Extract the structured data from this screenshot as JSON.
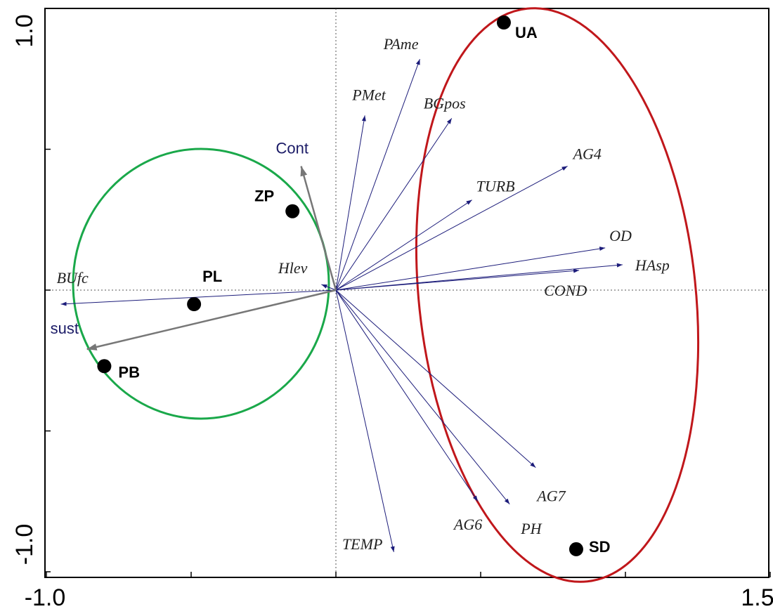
{
  "chart_data": {
    "type": "scatter",
    "subtype": "ordination-biplot",
    "xlim": [
      -1.0,
      1.5
    ],
    "ylim": [
      -1.0,
      1.0
    ],
    "x_tick_labels": {
      "min": "-1.0",
      "max": "1.5"
    },
    "y_tick_labels": {
      "min": "-1.0",
      "max": "1.0"
    },
    "x_ticks": [
      -1.0,
      -0.5,
      0.0,
      0.5,
      1.0,
      1.5
    ],
    "y_ticks": [
      -1.0,
      -0.5,
      0.0,
      0.5,
      1.0
    ],
    "zero_lines": "dotted",
    "grid": false,
    "sites": [
      {
        "label": "UA",
        "x": 0.58,
        "y": 0.95
      },
      {
        "label": "ZP",
        "x": -0.15,
        "y": 0.28
      },
      {
        "label": "PL",
        "x": -0.49,
        "y": -0.05
      },
      {
        "label": "PB",
        "x": -0.8,
        "y": -0.27
      },
      {
        "label": "SD",
        "x": 0.83,
        "y": -0.92
      }
    ],
    "environmental_vectors": [
      {
        "label": "PAme",
        "x": 0.29,
        "y": 0.82
      },
      {
        "label": "PMet",
        "x": 0.1,
        "y": 0.62
      },
      {
        "label": "BGpos",
        "x": 0.4,
        "y": 0.61
      },
      {
        "label": "AG4",
        "x": 0.8,
        "y": 0.44
      },
      {
        "label": "TURB",
        "x": 0.47,
        "y": 0.32
      },
      {
        "label": "OD",
        "x": 0.93,
        "y": 0.15
      },
      {
        "label": "HAsp",
        "x": 0.99,
        "y": 0.09
      },
      {
        "label": "COND",
        "x": 0.84,
        "y": 0.07
      },
      {
        "label": "Hlev",
        "x": -0.05,
        "y": 0.02
      },
      {
        "label": "BUfc",
        "x": -0.95,
        "y": -0.05
      },
      {
        "label": "AG7",
        "x": 0.69,
        "y": -0.63
      },
      {
        "label": "AG6",
        "x": 0.49,
        "y": -0.75
      },
      {
        "label": "PH",
        "x": 0.6,
        "y": -0.76
      },
      {
        "label": "TEMP",
        "x": 0.2,
        "y": -0.93
      }
    ],
    "supplementary_vectors": [
      {
        "label": "Cont",
        "x": -0.12,
        "y": 0.44
      },
      {
        "label": "sust",
        "x": -0.86,
        "y": -0.21
      }
    ],
    "groups": [
      {
        "color": "#1aa84a",
        "members": [
          "ZP",
          "PL",
          "PB"
        ]
      },
      {
        "color": "#c0171b",
        "members": [
          "UA",
          "SD"
        ]
      }
    ],
    "colors": {
      "env_vector": "#1c1c7a",
      "supp_vector": "#777777",
      "supp_label": "#1a1a66",
      "site_point": "#000000"
    }
  }
}
